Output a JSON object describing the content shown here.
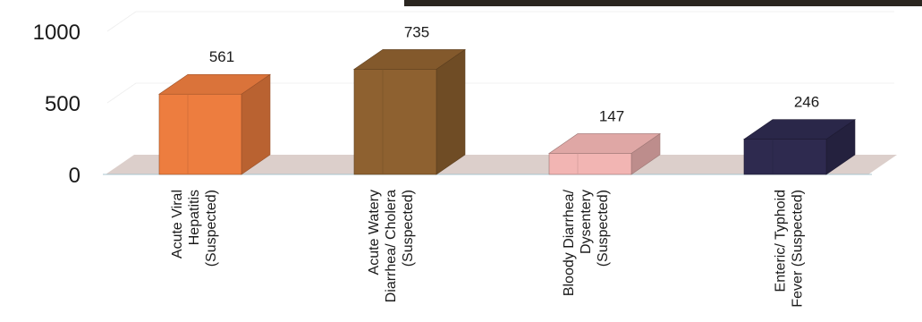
{
  "chart_data": {
    "type": "bar",
    "style": "3d-column",
    "title": "",
    "xlabel": "",
    "ylabel": "",
    "ylim": [
      0,
      1000
    ],
    "yticks": [
      0,
      500,
      1000
    ],
    "grid": true,
    "legend": "none",
    "categories": [
      [
        "Acute Viral",
        "Hepatitis",
        "(Suspected)"
      ],
      [
        "Acute Watery",
        "Diarrhea/ Cholera",
        "(Suspected)"
      ],
      [
        "Bloody Diarrhea/",
        "Dysentery",
        "(Suspected)"
      ],
      [
        "Enteric/ Typhoid",
        "Fever (Suspected)"
      ]
    ],
    "values": [
      561,
      735,
      147,
      246
    ],
    "data_labels": [
      "561",
      "735",
      "147",
      "246"
    ],
    "colors": {
      "bars": [
        "#ED7D3F",
        "#8E6130",
        "#F2B5B3",
        "#2E2A4F"
      ],
      "floor": "#DCCFCB",
      "axis_text": "#1A1A1A",
      "top_band": "#2B2620"
    }
  }
}
